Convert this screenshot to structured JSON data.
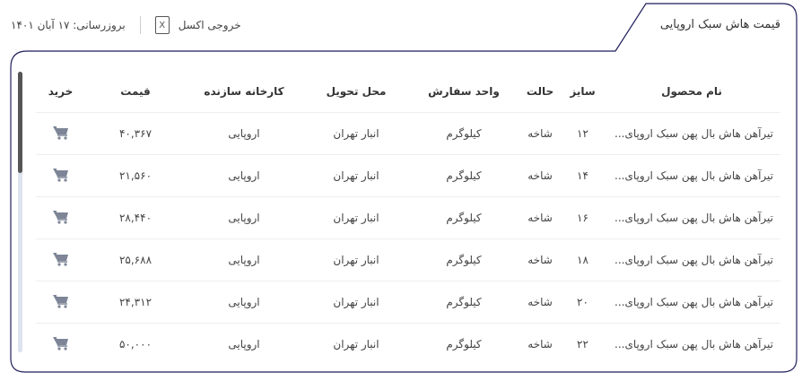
{
  "header": {
    "title": "قیمت هاش سبک اروپایی",
    "excel_label": "خروجی اکسل",
    "excel_icon": "excel-file-icon",
    "updated": "بروزرسانی: ۱۷ آبان ۱۴۰۱"
  },
  "table": {
    "columns": [
      "نام محصول",
      "سایز",
      "حالت",
      "واحد سفارش",
      "محل تحویل",
      "کارخانه سازنده",
      "قیمت",
      "خرید"
    ],
    "rows": [
      {
        "name": "تیرآهن هاش بال پهن سبک اروپای...",
        "size": "۱۲",
        "state": "شاخه",
        "unit": "کیلوگرم",
        "location": "انبار تهران",
        "factory": "اروپایی",
        "price": "۴۰,۳۶۷"
      },
      {
        "name": "تیرآهن هاش بال پهن سبک اروپای...",
        "size": "۱۴",
        "state": "شاخه",
        "unit": "کیلوگرم",
        "location": "انبار تهران",
        "factory": "اروپایی",
        "price": "۲۱,۵۶۰"
      },
      {
        "name": "تیرآهن هاش بال پهن سبک اروپای...",
        "size": "۱۶",
        "state": "شاخه",
        "unit": "کیلوگرم",
        "location": "انبار تهران",
        "factory": "اروپایی",
        "price": "۲۸,۴۴۰"
      },
      {
        "name": "تیرآهن هاش بال پهن سبک اروپای...",
        "size": "۱۸",
        "state": "شاخه",
        "unit": "کیلوگرم",
        "location": "انبار تهران",
        "factory": "اروپایی",
        "price": "۲۵,۶۸۸"
      },
      {
        "name": "تیرآهن هاش بال پهن سبک اروپای...",
        "size": "۲۰",
        "state": "شاخه",
        "unit": "کیلوگرم",
        "location": "انبار تهران",
        "factory": "اروپایی",
        "price": "۲۴,۳۱۲"
      },
      {
        "name": "تیرآهن هاش بال پهن سبک اروپای...",
        "size": "۲۲",
        "state": "شاخه",
        "unit": "کیلوگرم",
        "location": "انبار تهران",
        "factory": "اروپایی",
        "price": "۵۰,۰۰۰"
      }
    ],
    "buy_icon": "cart-icon"
  },
  "colors": {
    "border": "#1f1f5c",
    "cart": "#7d8597",
    "scroll_thumb": "#555555",
    "scroll_track": "#dce3ef"
  }
}
